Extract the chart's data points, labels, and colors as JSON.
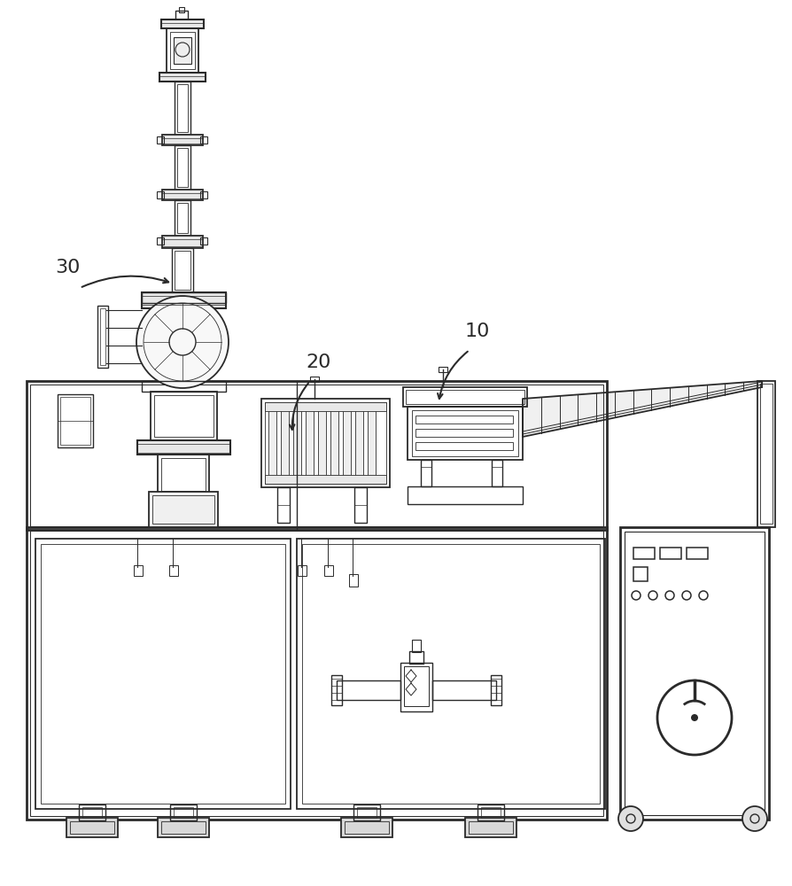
{
  "bg_color": "#ffffff",
  "lc": "#2a2a2a",
  "lw": 1.3,
  "tlw": 0.7,
  "label_30": "30",
  "label_20": "20",
  "label_10": "10"
}
